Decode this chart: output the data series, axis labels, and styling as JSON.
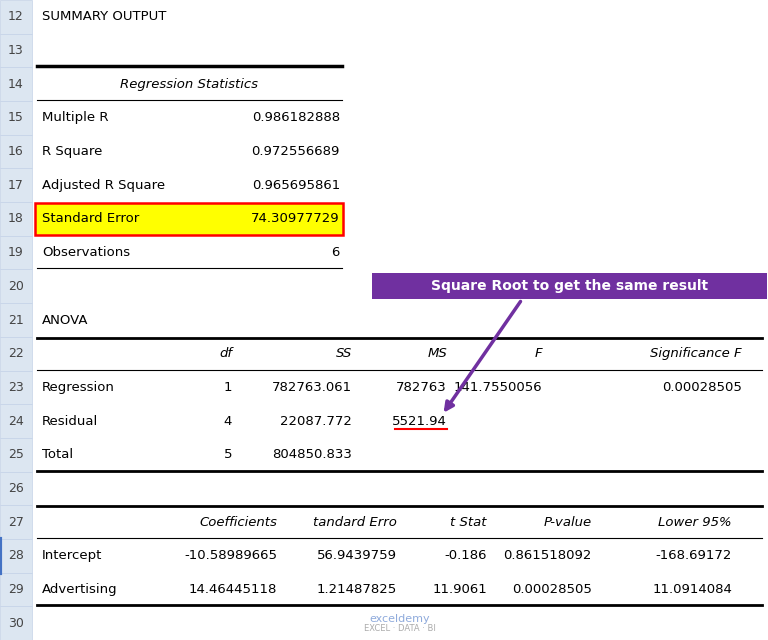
{
  "bg_color": "#f2f2f2",
  "content_bg": "#ffffff",
  "row_num_bg": "#dce6f1",
  "row_num_border": "#c5d3e8",
  "summary_output": "SUMMARY OUTPUT",
  "reg_stats_header": "Regression Statistics",
  "reg_stats": [
    {
      "label": "Multiple R",
      "value": "0.986182888"
    },
    {
      "label": "R Square",
      "value": "0.972556689"
    },
    {
      "label": "Adjusted R Square",
      "value": "0.965695861"
    },
    {
      "label": "Standard Error",
      "value": "74.30977729"
    },
    {
      "label": "Observations",
      "value": "6"
    }
  ],
  "anova_label": "ANOVA",
  "anova_data": [
    [
      "Regression",
      "1",
      "782763.061",
      "782763",
      "141.7550056",
      "0.00028505"
    ],
    [
      "Residual",
      "4",
      "22087.772",
      "5521.94",
      "",
      ""
    ],
    [
      "Total",
      "5",
      "804850.833",
      "",
      "",
      ""
    ]
  ],
  "coeff_headers": [
    "",
    "Coefficients",
    "tandard Erro",
    "t Stat",
    "P-value",
    "Lower 95%"
  ],
  "coeff_data": [
    [
      "Intercept",
      "-10.58989665",
      "56.9439759",
      "-0.186",
      "0.861518092",
      "-168.69172"
    ],
    [
      "Advertising",
      "14.46445118",
      "1.21487825",
      "11.9061",
      "0.00028505",
      "11.0914084"
    ]
  ],
  "annotation_text": "Square Root to get the same result",
  "annotation_bg": "#7030a0",
  "annotation_text_color": "#ffffff",
  "highlight_bg": "#ffff00",
  "highlight_border": "#ff0000",
  "underline_color": "#ff0000",
  "arrow_color": "#7030a0",
  "row28_left_border": "#4472c4",
  "text_color": "#000000",
  "font_size": 9.5
}
